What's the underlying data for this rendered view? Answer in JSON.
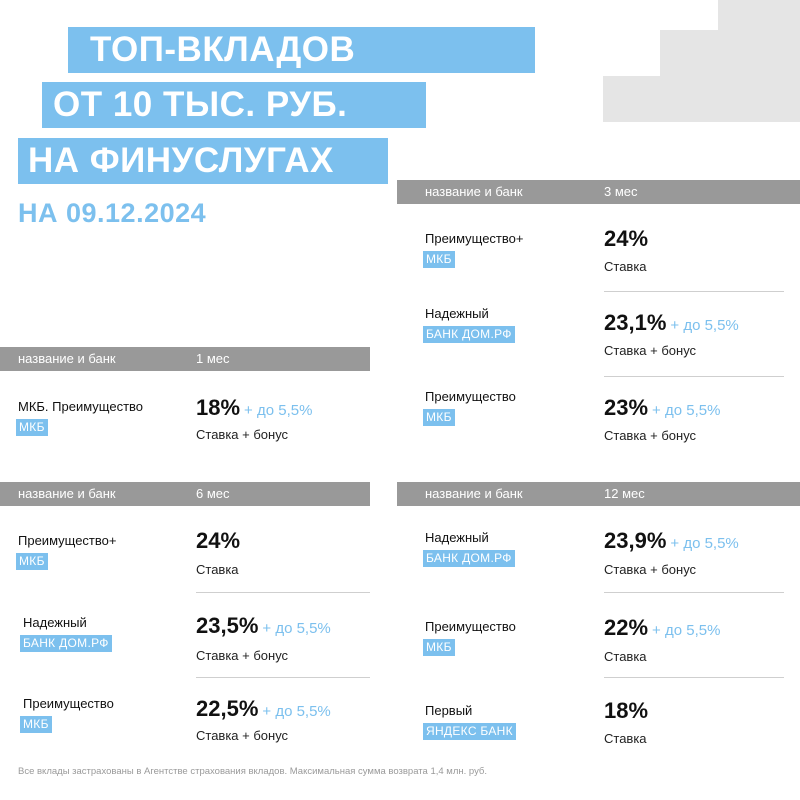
{
  "title": {
    "line1": "ТОП-ВКЛАДОВ",
    "line2": "ОТ 10 ТЫС. РУБ.",
    "line3": "НА ФИНУСЛУГАХ",
    "date": "НА 09.12.2024"
  },
  "colors": {
    "accent": "#7cc0ee",
    "header_bg": "#999999",
    "deco": "#e5e5e5"
  },
  "blocks": {
    "m3": {
      "header_name": "название и банк",
      "header_term": "3 мес",
      "rows": [
        {
          "name": "Преимущество+",
          "bank": "МКБ",
          "rate": "24%",
          "bonus": "",
          "caption": "Ставка"
        },
        {
          "name": "Надежный",
          "bank": "БАНК ДОМ.РФ",
          "rate": "23,1%",
          "bonus": "+ до 5,5%",
          "caption": "Ставка + бонус"
        },
        {
          "name": "Преимущество",
          "bank": "МКБ",
          "rate": "23%",
          "bonus": "+ до 5,5%",
          "caption": "Ставка + бонус"
        }
      ]
    },
    "m1": {
      "header_name": "название и банк",
      "header_term": "1 мес",
      "rows": [
        {
          "name": "МКБ. Преимущество",
          "bank": "МКБ",
          "rate": "18%",
          "bonus": "+ до 5,5%",
          "caption": "Ставка + бонус"
        }
      ]
    },
    "m6": {
      "header_name": "название и банк",
      "header_term": "6 мес",
      "rows": [
        {
          "name": "Преимущество+",
          "bank": "МКБ",
          "rate": "24%",
          "bonus": "",
          "caption": "Ставка"
        },
        {
          "name": "Надежный",
          "bank": "БАНК ДОМ.РФ",
          "rate": "23,5%",
          "bonus": "+ до 5,5%",
          "caption": "Ставка + бонус"
        },
        {
          "name": "Преимущество",
          "bank": "МКБ",
          "rate": "22,5%",
          "bonus": "+ до 5,5%",
          "caption": "Ставка + бонус"
        }
      ]
    },
    "m12": {
      "header_name": "название и банк",
      "header_term": "12 мес",
      "rows": [
        {
          "name": "Надежный",
          "bank": "БАНК ДОМ.РФ",
          "rate": "23,9%",
          "bonus": "+ до 5,5%",
          "caption": "Ставка + бонус"
        },
        {
          "name": "Преимущество",
          "bank": "МКБ",
          "rate": "22%",
          "bonus": "+ до 5,5%",
          "caption": "Ставка"
        },
        {
          "name": "Первый",
          "bank": "ЯНДЕКС БАНК",
          "rate": "18%",
          "bonus": "",
          "caption": "Ставка"
        }
      ]
    }
  },
  "footnote": "Все вклады застрахованы в Агентстве страхования вкладов. Максимальная сумма возврата 1,4 млн. руб."
}
